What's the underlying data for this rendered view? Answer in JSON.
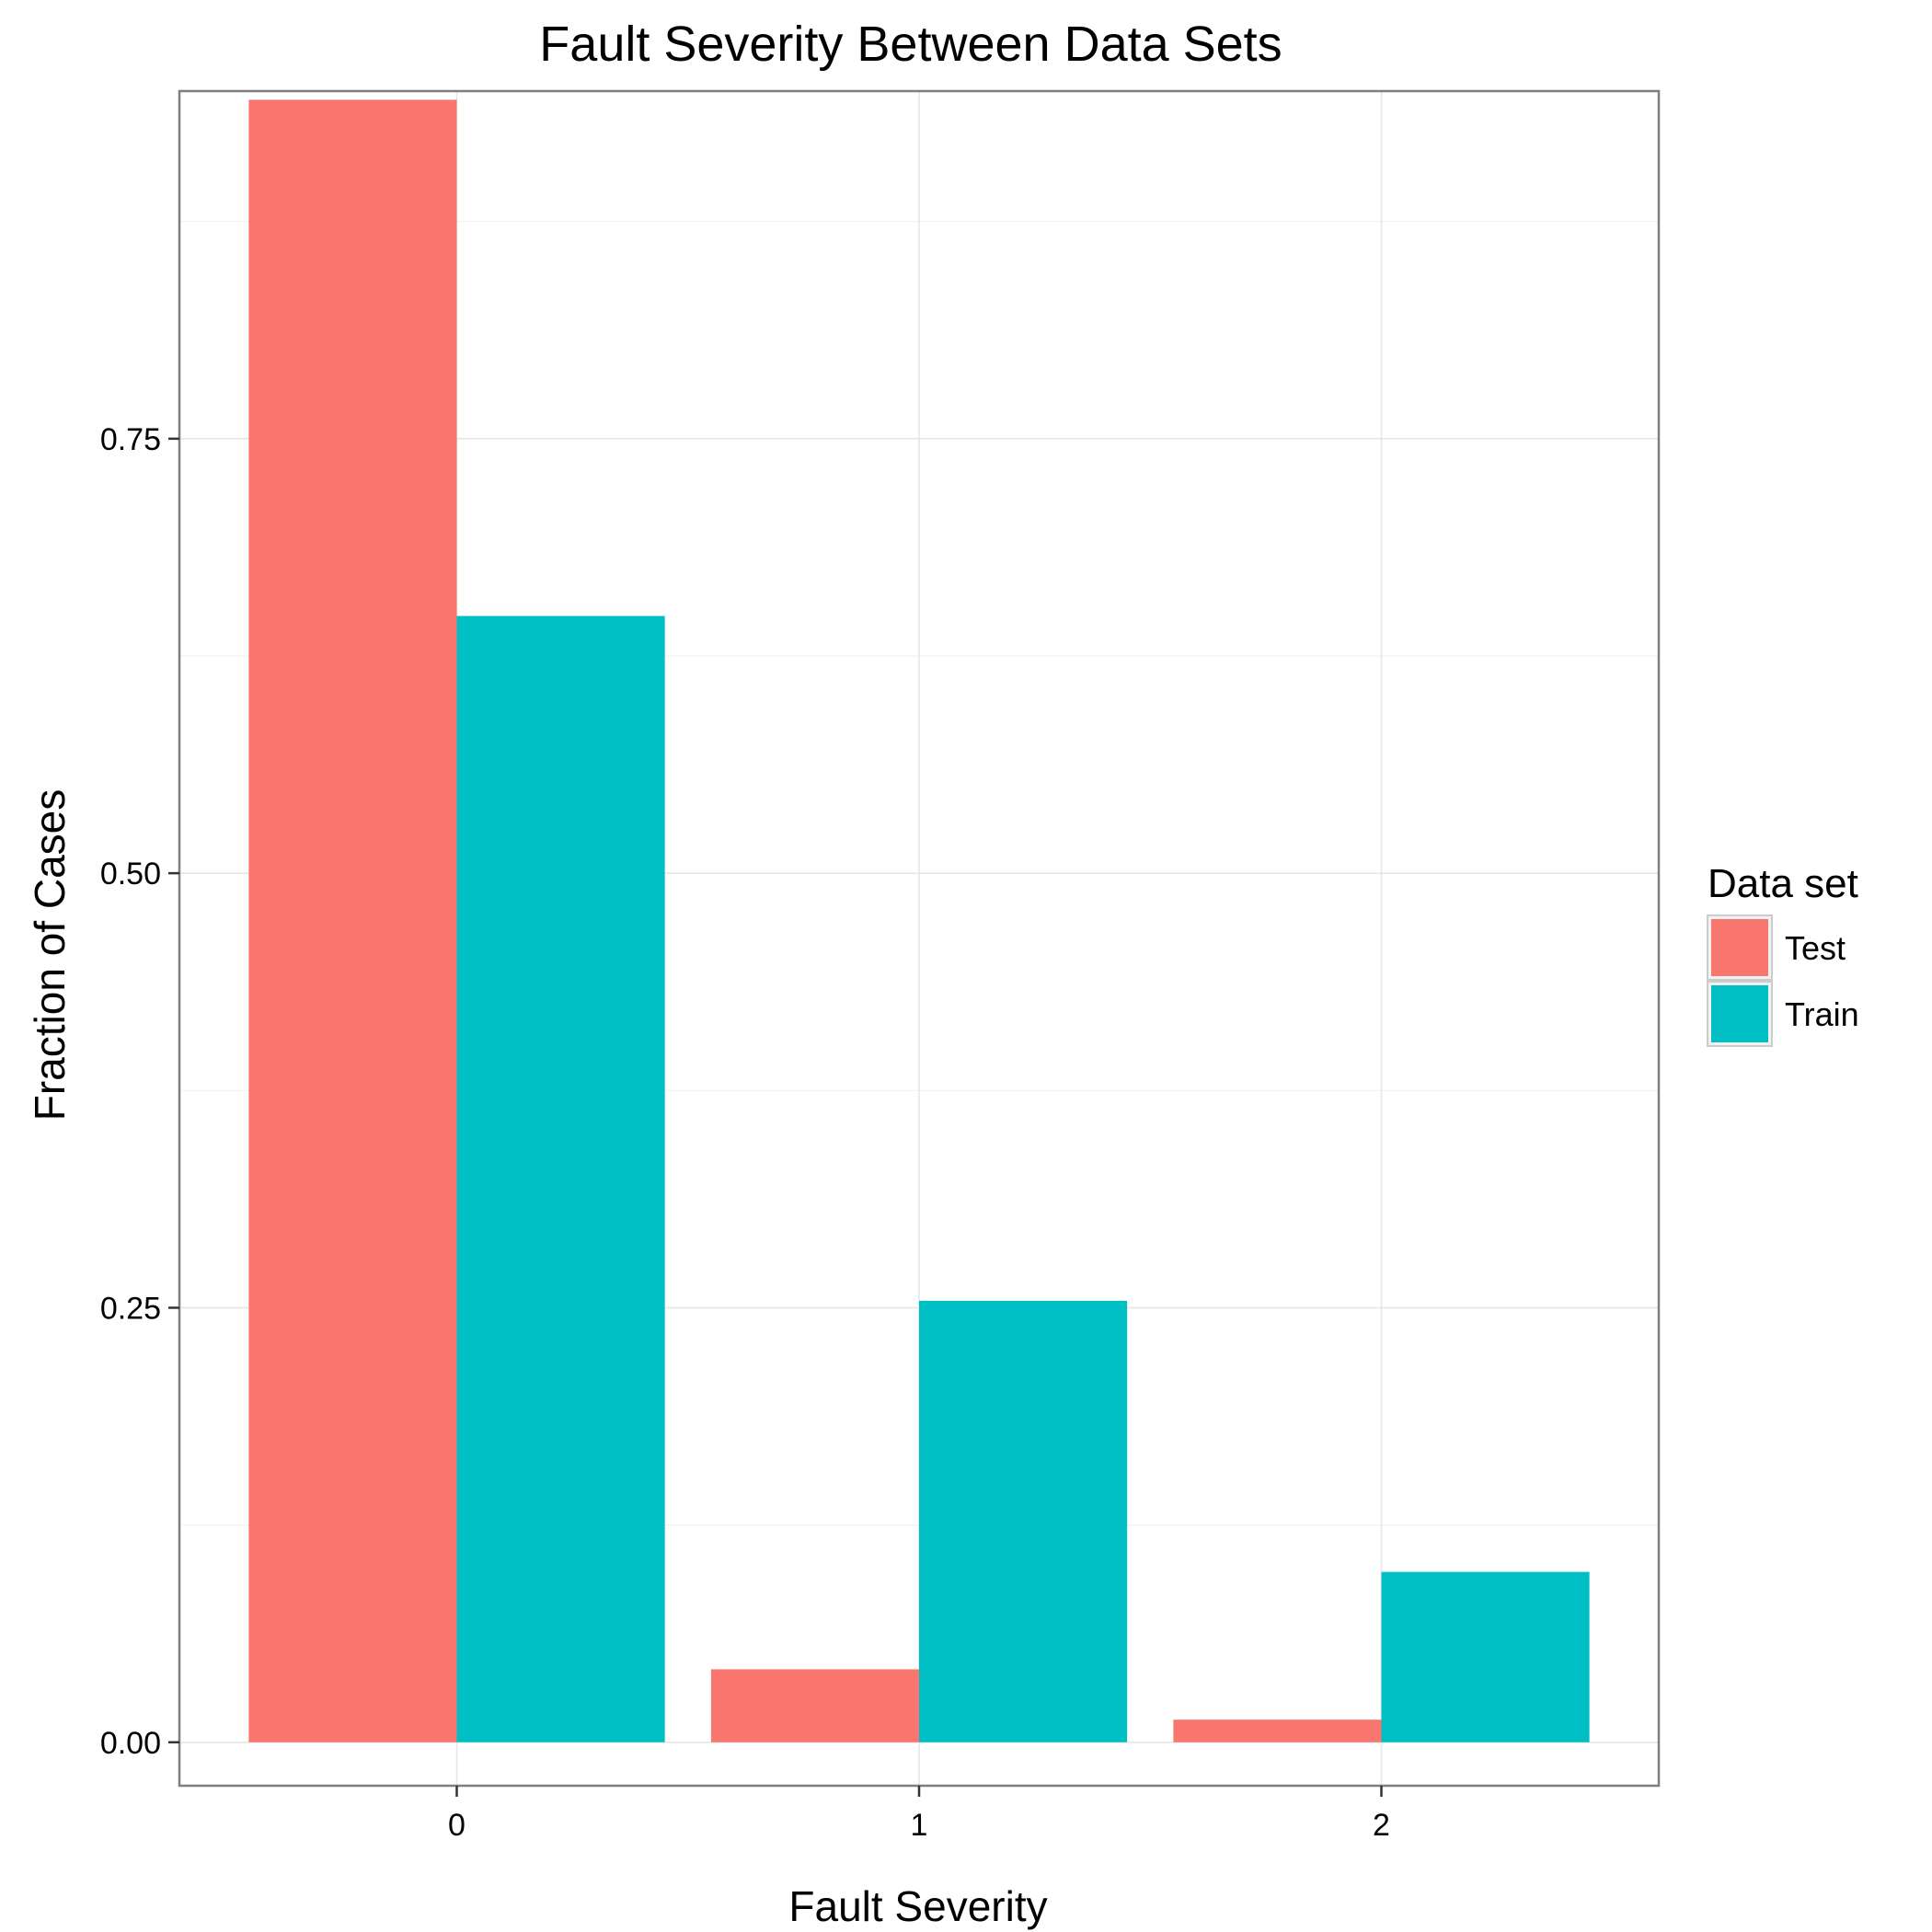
{
  "chart_data": {
    "type": "bar",
    "title": "Fault Severity Between Data Sets",
    "xlabel": "Fault Severity",
    "ylabel": "Fraction of Cases",
    "categories": [
      "0",
      "1",
      "2"
    ],
    "ylim": [
      -0.025,
      0.95
    ],
    "yticks": [
      0.0,
      0.25,
      0.5,
      0.75
    ],
    "ytick_labels": [
      "0.00",
      "0.25",
      "0.50",
      "0.75"
    ],
    "grid": true,
    "legend": {
      "title": "Data set",
      "placement": "right"
    },
    "series": [
      {
        "name": "Test",
        "color": "#F8766D",
        "values": [
          0.945,
          0.042,
          0.013
        ]
      },
      {
        "name": "Train",
        "color": "#00BFC4",
        "values": [
          0.648,
          0.254,
          0.098
        ]
      }
    ]
  }
}
